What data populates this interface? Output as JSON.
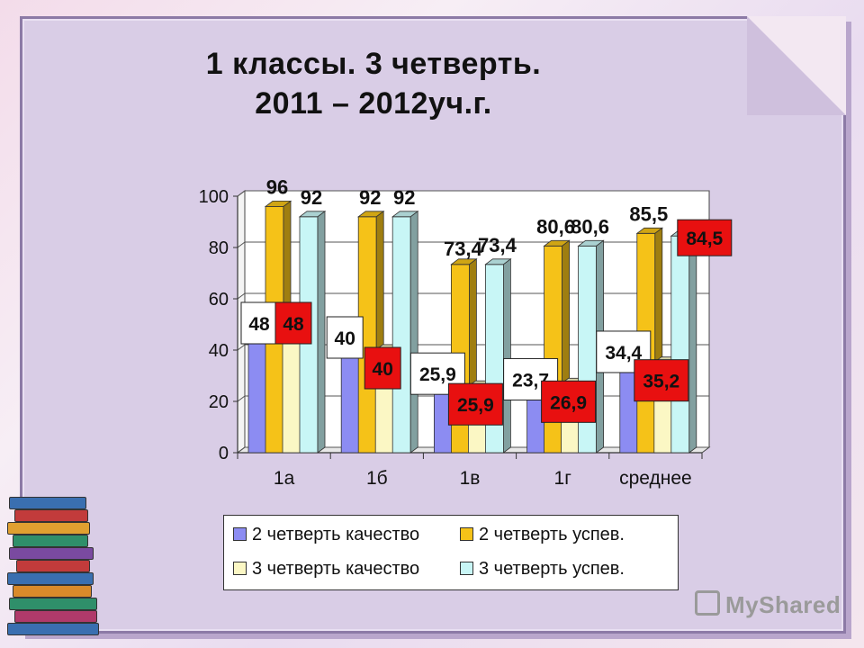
{
  "slide": {
    "title_line1": "1 классы. 3 четверть.",
    "title_line2": "2011 – 2012уч.г."
  },
  "watermark": {
    "text": "MyShared"
  },
  "colors": {
    "q2_quality": "#8c8cf2",
    "q2_success": "#f5c218",
    "q3_quality": "#fbf7c4",
    "q3_success": "#c8f6f6",
    "label_red": "#e81010"
  },
  "chart_data": {
    "type": "bar",
    "categories": [
      "1а",
      "1б",
      "1в",
      "1г",
      "среднее"
    ],
    "ylim": [
      0,
      100
    ],
    "yticks": [
      0,
      20,
      40,
      60,
      80,
      100
    ],
    "legend_position": "bottom",
    "series": [
      {
        "name": "2 четверть качество",
        "values": [
          48,
          40,
          25.9,
          23.7,
          34.4
        ],
        "labels": [
          "48",
          "40",
          "25,9",
          "23,7",
          "34,4"
        ]
      },
      {
        "name": "2 четверть успев.",
        "values": [
          96,
          92,
          73.4,
          80.6,
          85.5
        ],
        "labels": [
          "96",
          "92",
          "73,4",
          "80,6",
          "85,5"
        ]
      },
      {
        "name": "3 четверть качество",
        "values": [
          48,
          40,
          25.9,
          26.9,
          35.2
        ],
        "labels": [
          "48",
          "40",
          "25,9",
          "26,9",
          "35,2"
        ]
      },
      {
        "name": "3 четверть успев.",
        "values": [
          92,
          92,
          73.4,
          80.6,
          84.5
        ],
        "labels": [
          "92",
          "92",
          "73,4",
          "80,6",
          "84,5"
        ]
      }
    ]
  }
}
